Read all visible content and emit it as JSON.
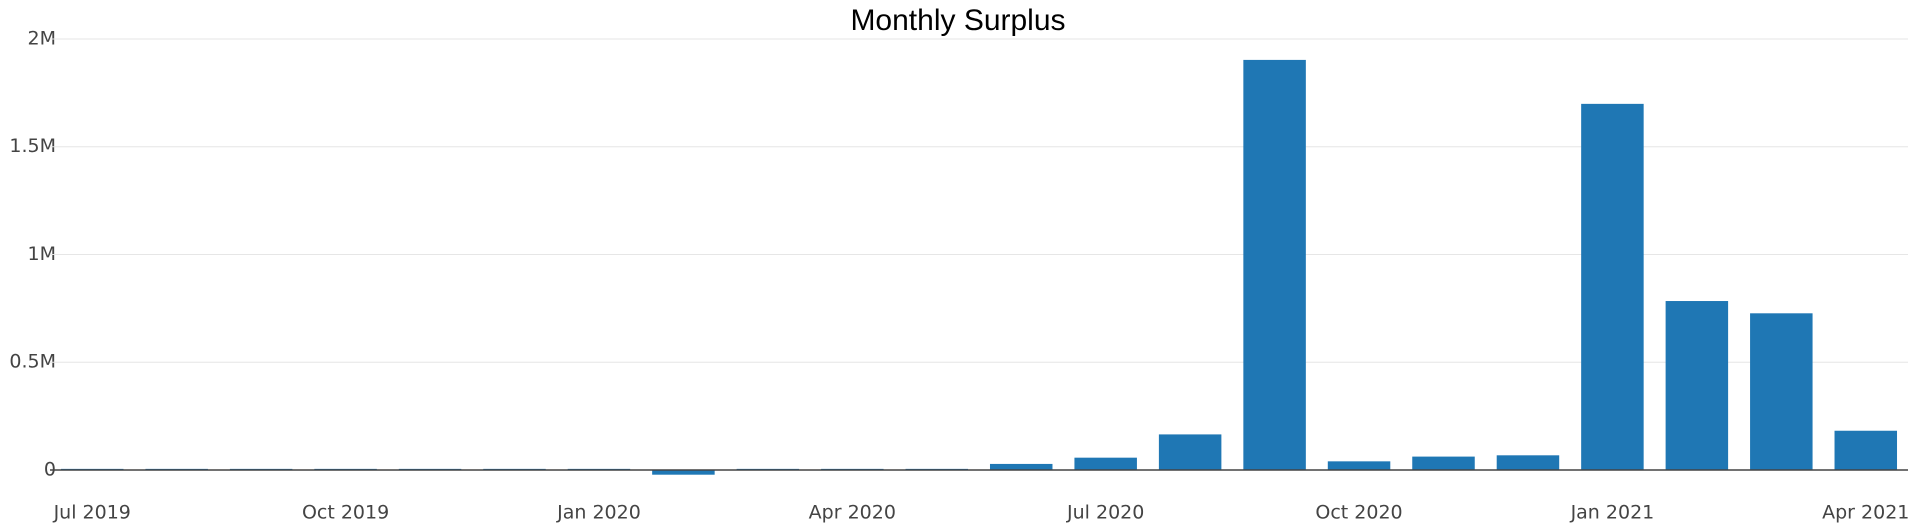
{
  "chart_data": {
    "type": "bar",
    "title": "Monthly Surplus",
    "x": [
      "2019-07",
      "2019-08",
      "2019-09",
      "2019-10",
      "2019-11",
      "2019-12",
      "2020-01",
      "2020-02",
      "2020-03",
      "2020-04",
      "2020-05",
      "2020-06",
      "2020-07",
      "2020-08",
      "2020-09",
      "2020-10",
      "2020-11",
      "2020-12",
      "2021-01",
      "2021-02",
      "2021-03",
      "2021-04"
    ],
    "values": [
      5000,
      5000,
      5000,
      5000,
      5000,
      5000,
      5000,
      -22000,
      5000,
      5000,
      5000,
      28000,
      57000,
      165000,
      1903000,
      40000,
      62000,
      68000,
      1699000,
      784000,
      727000,
      182000
    ],
    "color": "#1f77b4",
    "xticks": [
      {
        "value": "2019-07",
        "label": "Jul 2019"
      },
      {
        "value": "2019-10",
        "label": "Oct 2019"
      },
      {
        "value": "2020-01",
        "label": "Jan 2020"
      },
      {
        "value": "2020-04",
        "label": "Apr 2020"
      },
      {
        "value": "2020-07",
        "label": "Jul 2020"
      },
      {
        "value": "2020-10",
        "label": "Oct 2020"
      },
      {
        "value": "2021-01",
        "label": "Jan 2021"
      },
      {
        "value": "2021-04",
        "label": "Apr 2021"
      }
    ],
    "ylim": [
      -35000,
      2000000
    ],
    "yticks": [
      0,
      {
        "value": 500000,
        "label": "0.5M"
      },
      {
        "value": 1000000,
        "label": "1M"
      },
      {
        "value": 1500000,
        "label": "1.5M"
      },
      {
        "value": 2000000,
        "label": "2M"
      }
    ],
    "grid": true
  }
}
